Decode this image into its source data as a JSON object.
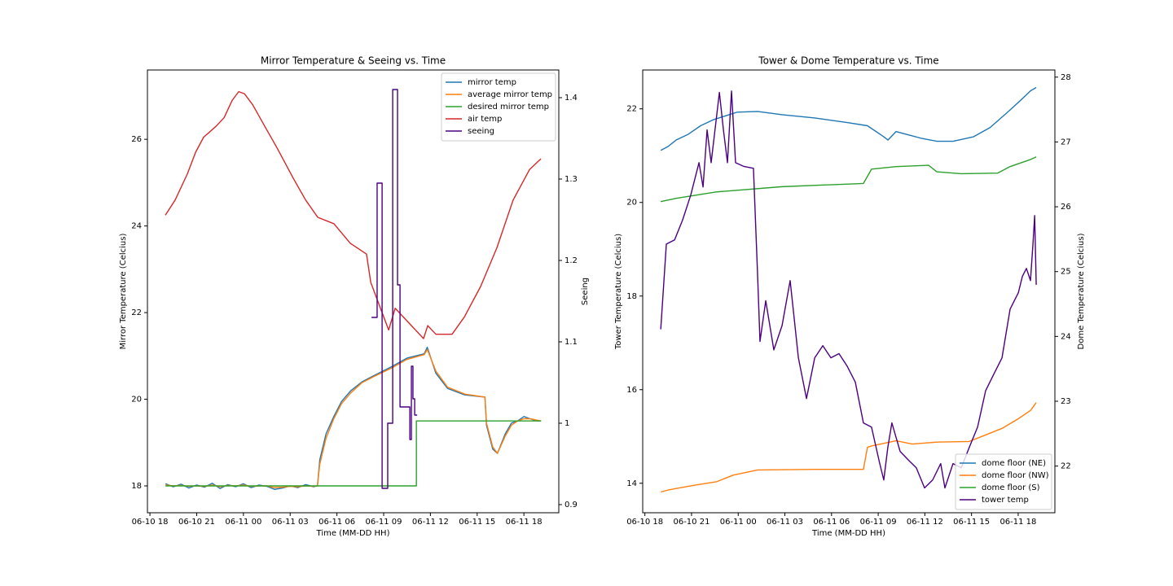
{
  "chart_data": [
    {
      "type": "line",
      "title": "Mirror Temperature & Seeing vs. Time",
      "x_label": "Time (MM-DD HH)",
      "y_label": "Mirror Temperature (Celcius)",
      "y2_label": "Seeing",
      "xlim": [
        17.84,
        44.24
      ],
      "xticks": [
        {
          "value": 18,
          "label": "06-10 18"
        },
        {
          "value": 21,
          "label": "06-10 21"
        },
        {
          "value": 24,
          "label": "06-11 00"
        },
        {
          "value": 27,
          "label": "06-11 03"
        },
        {
          "value": 30,
          "label": "06-11 06"
        },
        {
          "value": 33,
          "label": "06-11 09"
        },
        {
          "value": 36,
          "label": "06-11 12"
        },
        {
          "value": 39,
          "label": "06-11 15"
        },
        {
          "value": 42,
          "label": "06-11 18"
        }
      ],
      "ylim": [
        17.38,
        27.6
      ],
      "yticks": [
        18,
        20,
        22,
        24,
        26
      ],
      "y2lim": [
        0.89,
        1.434
      ],
      "y2ticks": [
        0.9,
        1.0,
        1.1,
        1.2,
        1.3,
        1.4
      ],
      "legend": "upper right",
      "series": [
        {
          "name": "mirror temp",
          "color": "#1f77b4",
          "axis": "y",
          "x": [
            19.0,
            19.5,
            20.0,
            20.5,
            21.0,
            21.5,
            22.0,
            22.5,
            23.0,
            23.5,
            24.0,
            24.5,
            25.0,
            25.5,
            26.0,
            26.5,
            27.0,
            27.5,
            28.0,
            28.5,
            28.75,
            28.9,
            29.3,
            29.8,
            30.3,
            30.9,
            31.6,
            32.4,
            33.5,
            34.5,
            35.6,
            35.8,
            36.35,
            37.1,
            38.2,
            39.5,
            39.6,
            40.0,
            40.3,
            40.8,
            41.2,
            41.6,
            42.0,
            42.4,
            42.8,
            43.1
          ],
          "values": [
            18.05,
            17.98,
            18.04,
            17.95,
            18.02,
            17.97,
            18.06,
            17.94,
            18.03,
            17.98,
            18.05,
            17.96,
            18.02,
            17.99,
            17.92,
            17.95,
            18.0,
            17.96,
            18.03,
            17.98,
            18.0,
            18.6,
            19.2,
            19.6,
            19.95,
            20.2,
            20.4,
            20.55,
            20.75,
            20.95,
            21.05,
            21.2,
            20.6,
            20.25,
            20.1,
            20.05,
            19.4,
            18.85,
            18.75,
            19.2,
            19.45,
            19.5,
            19.6,
            19.55,
            19.5,
            19.5
          ]
        },
        {
          "name": "average mirror temp",
          "color": "#ff7f0e",
          "axis": "y",
          "x": [
            19.0,
            19.5,
            20.0,
            20.5,
            21.0,
            21.5,
            22.0,
            22.5,
            23.0,
            23.5,
            24.0,
            24.5,
            25.0,
            25.5,
            26.0,
            26.5,
            27.0,
            27.5,
            28.0,
            28.5,
            28.75,
            28.9,
            29.3,
            29.8,
            30.3,
            30.9,
            31.6,
            32.4,
            33.5,
            34.5,
            35.6,
            35.8,
            36.35,
            37.1,
            38.2,
            39.5,
            39.6,
            40.0,
            40.3,
            40.8,
            41.2,
            41.6,
            42.0,
            42.4,
            42.8,
            43.1
          ],
          "values": [
            18.02,
            18.0,
            18.01,
            17.99,
            18.0,
            17.99,
            18.02,
            17.98,
            18.01,
            18.0,
            18.02,
            17.99,
            18.0,
            18.0,
            17.96,
            17.97,
            17.99,
            17.98,
            18.0,
            17.99,
            18.0,
            18.5,
            19.1,
            19.55,
            19.9,
            20.15,
            20.38,
            20.53,
            20.72,
            20.92,
            21.03,
            21.15,
            20.65,
            20.28,
            20.12,
            20.05,
            19.45,
            18.9,
            18.75,
            19.15,
            19.4,
            19.5,
            19.55,
            19.55,
            19.52,
            19.5
          ]
        },
        {
          "name": "desired mirror temp",
          "color": "#2ca02c",
          "axis": "y",
          "x": [
            19.0,
            35.1,
            35.1,
            43.1
          ],
          "values": [
            18.0,
            18.0,
            19.5,
            19.5
          ]
        },
        {
          "name": "air temp",
          "color": "#d62728",
          "axis": "y",
          "x": [
            18.99,
            19.62,
            20.4,
            20.93,
            21.45,
            22.24,
            22.76,
            23.28,
            23.7,
            24.07,
            24.59,
            25.37,
            26.16,
            27.2,
            27.99,
            28.77,
            29.81,
            30.86,
            31.9,
            32.17,
            32.69,
            33.32,
            33.74,
            34.52,
            35.56,
            35.83,
            36.35,
            37.39,
            38.18,
            39.22,
            40.27,
            41.31,
            42.36,
            43.09
          ],
          "values": [
            24.25,
            24.6,
            25.2,
            25.7,
            26.05,
            26.3,
            26.5,
            26.9,
            27.1,
            27.05,
            26.8,
            26.3,
            25.8,
            25.1,
            24.6,
            24.2,
            24.05,
            23.6,
            23.35,
            22.7,
            22.2,
            21.6,
            22.1,
            21.8,
            21.4,
            21.7,
            21.5,
            21.5,
            21.9,
            22.6,
            23.5,
            24.6,
            25.3,
            25.55
          ]
        },
        {
          "name": "seeing",
          "color": "#4b0082",
          "axis": "y2",
          "x": [
            32.22,
            32.58,
            32.58,
            32.9,
            32.9,
            33.26,
            33.26,
            33.58,
            33.58,
            33.89,
            33.89,
            34.05,
            34.05,
            34.68,
            34.68,
            34.78,
            34.78,
            34.88,
            34.88,
            34.99,
            34.99,
            35.15
          ],
          "values": [
            1.13,
            1.13,
            1.295,
            1.295,
            0.92,
            0.92,
            1.0,
            1.0,
            1.41,
            1.41,
            1.17,
            1.17,
            1.02,
            1.02,
            0.98,
            0.98,
            1.07,
            1.07,
            1.03,
            1.03,
            1.01,
            1.01
          ]
        }
      ]
    },
    {
      "type": "line",
      "title": "Tower & Dome Temperature vs. Time",
      "x_label": "Time (MM-DD HH)",
      "y_label": "Tower Temperature (Celcius)",
      "y2_label": "Dome Temperature (Celcius)",
      "xlim": [
        17.86,
        44.36
      ],
      "xticks": [
        {
          "value": 18,
          "label": "06-10 18"
        },
        {
          "value": 21,
          "label": "06-10 21"
        },
        {
          "value": 24,
          "label": "06-11 00"
        },
        {
          "value": 27,
          "label": "06-11 03"
        },
        {
          "value": 30,
          "label": "06-11 06"
        },
        {
          "value": 33,
          "label": "06-11 09"
        },
        {
          "value": 36,
          "label": "06-11 12"
        },
        {
          "value": 39,
          "label": "06-11 15"
        },
        {
          "value": 42,
          "label": "06-11 18"
        }
      ],
      "ylim": [
        13.37,
        22.83
      ],
      "yticks": [
        14,
        16,
        18,
        20,
        22
      ],
      "y2lim": [
        21.28,
        28.11
      ],
      "y2ticks": [
        22,
        23,
        24,
        25,
        26,
        27,
        28
      ],
      "legend": "lower right",
      "series": [
        {
          "name": "dome floor (NE)",
          "color": "#1f77b4",
          "axis": "y2",
          "x": [
            19.02,
            19.49,
            20.01,
            20.8,
            21.58,
            22.37,
            23.15,
            23.94,
            25.25,
            26.82,
            28.92,
            31.01,
            32.31,
            33.36,
            33.63,
            34.15,
            34.94,
            35.72,
            36.77,
            37.82,
            39.13,
            40.18,
            41.23,
            42.01,
            42.8,
            43.16
          ],
          "values": [
            26.87,
            26.93,
            27.03,
            27.12,
            27.25,
            27.34,
            27.4,
            27.46,
            27.47,
            27.42,
            27.37,
            27.3,
            27.25,
            27.08,
            27.03,
            27.16,
            27.11,
            27.06,
            27.01,
            27.01,
            27.08,
            27.22,
            27.44,
            27.61,
            27.79,
            27.84
          ]
        },
        {
          "name": "dome floor (NW)",
          "color": "#ff7f0e",
          "axis": "y2",
          "x": [
            19.02,
            19.49,
            21.06,
            22.63,
            23.67,
            25.25,
            28.92,
            32.05,
            32.31,
            32.57,
            34.15,
            35.19,
            36.77,
            38.85,
            39.9,
            40.95,
            42.01,
            42.8,
            43.16
          ],
          "values": [
            21.6,
            21.63,
            21.7,
            21.76,
            21.86,
            21.94,
            21.95,
            21.95,
            22.29,
            22.31,
            22.39,
            22.34,
            22.37,
            22.38,
            22.48,
            22.58,
            22.73,
            22.86,
            22.98
          ]
        },
        {
          "name": "dome floor (S)",
          "color": "#2ca02c",
          "axis": "y2",
          "x": [
            19.02,
            20.01,
            22.63,
            26.82,
            32.05,
            32.57,
            34.15,
            36.24,
            36.77,
            38.34,
            40.69,
            41.48,
            42.8,
            43.16
          ],
          "values": [
            26.08,
            26.13,
            26.23,
            26.31,
            26.36,
            26.58,
            26.62,
            26.64,
            26.54,
            26.51,
            26.52,
            26.62,
            26.73,
            26.77
          ]
        },
        {
          "name": "tower temp",
          "color": "#4b0082",
          "axis": "y",
          "x": [
            19.02,
            19.38,
            19.91,
            20.43,
            20.95,
            21.48,
            21.74,
            22.0,
            22.26,
            22.79,
            23.05,
            23.31,
            23.57,
            23.83,
            24.36,
            24.98,
            25.25,
            25.4,
            25.77,
            26.29,
            26.82,
            27.34,
            27.87,
            28.39,
            28.92,
            29.44,
            29.96,
            30.48,
            31.01,
            31.53,
            32.05,
            32.57,
            33.1,
            33.36,
            33.62,
            33.88,
            34.41,
            34.93,
            35.45,
            35.98,
            36.5,
            37.02,
            37.29,
            37.81,
            38.34,
            38.86,
            39.39,
            39.91,
            40.43,
            40.96,
            41.48,
            42.01,
            42.27,
            42.53,
            42.79,
            42.95,
            43.06,
            43.16
          ],
          "values": [
            17.29,
            19.11,
            19.2,
            19.63,
            20.16,
            20.85,
            20.33,
            21.55,
            20.85,
            22.35,
            21.55,
            20.85,
            22.38,
            20.85,
            20.77,
            20.73,
            18.42,
            17.03,
            17.9,
            16.85,
            17.37,
            18.33,
            16.68,
            15.81,
            16.68,
            16.94,
            16.68,
            16.77,
            16.5,
            16.16,
            15.29,
            15.2,
            14.42,
            14.07,
            14.77,
            15.29,
            14.68,
            14.5,
            14.33,
            13.9,
            14.07,
            14.42,
            13.9,
            14.42,
            14.33,
            14.77,
            15.2,
            15.98,
            16.33,
            16.68,
            17.72,
            18.07,
            18.42,
            18.59,
            18.33,
            19.11,
            19.72,
            18.24
          ]
        }
      ]
    }
  ]
}
